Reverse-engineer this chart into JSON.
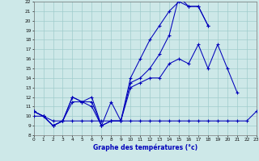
{
  "xlabel": "Graphe des températures (°c)",
  "xlim": [
    0,
    23
  ],
  "ylim": [
    8,
    22
  ],
  "xtick_vals": [
    0,
    1,
    2,
    3,
    4,
    5,
    6,
    7,
    8,
    9,
    10,
    11,
    12,
    13,
    14,
    15,
    16,
    17,
    18,
    19,
    20,
    21,
    22,
    23
  ],
  "ytick_vals": [
    8,
    9,
    10,
    11,
    12,
    13,
    14,
    15,
    16,
    17,
    18,
    19,
    20,
    21,
    22
  ],
  "background_color": "#cde8e8",
  "line_color": "#0000bb",
  "grid_color": "#a0cccc",
  "series": [
    {
      "x": [
        0,
        1,
        2,
        3,
        4,
        5,
        6,
        7,
        8,
        9,
        10,
        11,
        12,
        13,
        14,
        15,
        16,
        17,
        18,
        19,
        20,
        21,
        22,
        23
      ],
      "y": [
        10.0,
        10.0,
        9.5,
        9.5,
        9.5,
        9.5,
        9.5,
        9.5,
        9.5,
        9.5,
        9.5,
        9.5,
        9.5,
        9.5,
        9.5,
        9.5,
        9.5,
        9.5,
        9.5,
        9.5,
        9.5,
        9.5,
        9.5,
        10.5
      ]
    },
    {
      "x": [
        0,
        1,
        2,
        3,
        4,
        5,
        6,
        7,
        8,
        9,
        10,
        11,
        12,
        13,
        14,
        15,
        16,
        17,
        18,
        19,
        20,
        21
      ],
      "y": [
        10.5,
        10.0,
        9.0,
        9.5,
        12.0,
        11.5,
        12.0,
        9.0,
        11.5,
        9.5,
        13.0,
        13.5,
        14.0,
        14.0,
        15.5,
        16.0,
        15.5,
        17.5,
        15.0,
        17.5,
        15.0,
        12.5
      ]
    },
    {
      "x": [
        0,
        1,
        2,
        3,
        4,
        5,
        6,
        7,
        8,
        9,
        10,
        11,
        12,
        13,
        14,
        15,
        16,
        17,
        18
      ],
      "y": [
        10.5,
        10.0,
        9.0,
        9.5,
        12.0,
        11.5,
        11.5,
        9.0,
        9.5,
        9.5,
        14.0,
        16.0,
        18.0,
        19.5,
        21.0,
        22.0,
        21.5,
        21.5,
        19.5
      ]
    },
    {
      "x": [
        0,
        1,
        2,
        3,
        4,
        5,
        6,
        7,
        8,
        9,
        10,
        11,
        12,
        13,
        14,
        15,
        16,
        17,
        18
      ],
      "y": [
        10.5,
        10.0,
        9.0,
        9.5,
        11.5,
        11.5,
        11.0,
        9.0,
        9.5,
        9.5,
        13.5,
        14.0,
        15.0,
        16.5,
        18.5,
        22.5,
        21.5,
        21.5,
        19.5
      ]
    }
  ]
}
